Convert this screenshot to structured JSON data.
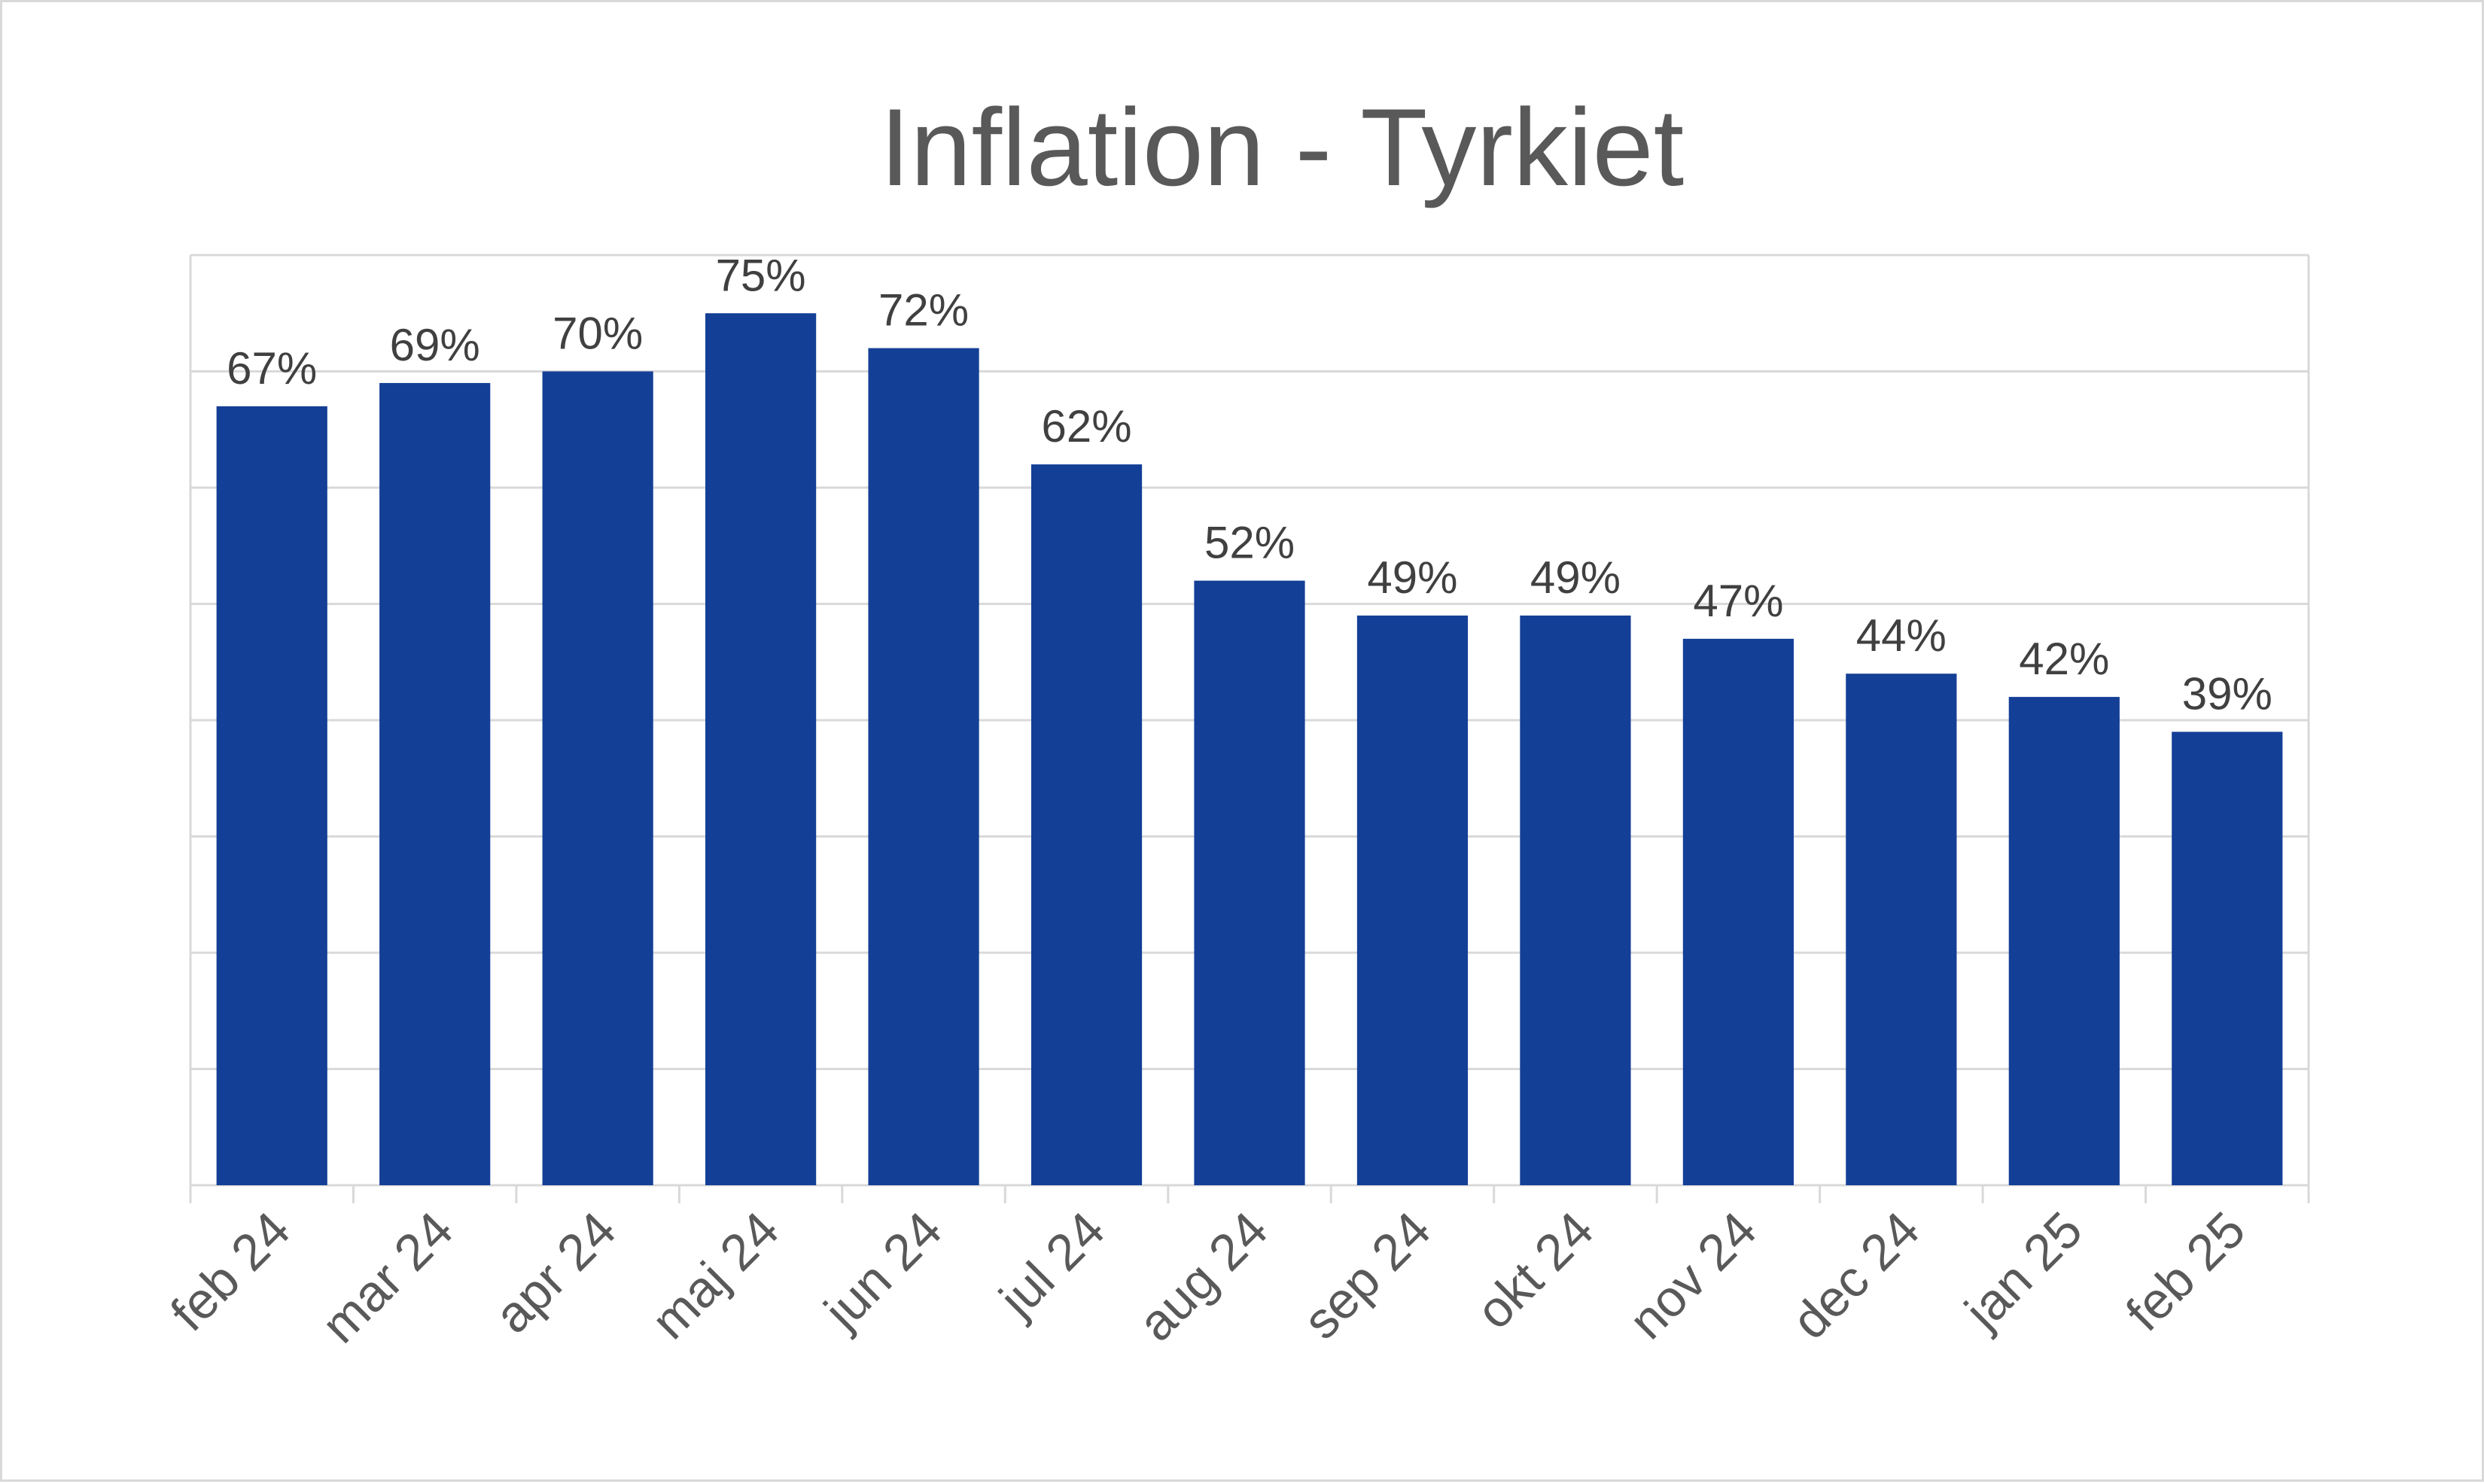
{
  "chart_data": {
    "type": "bar",
    "title": "Inflation - Tyrkiet",
    "xlabel": "",
    "ylabel": "",
    "categories": [
      "feb 24",
      "mar 24",
      "apr 24",
      "maj 24",
      "jun 24",
      "jul 24",
      "aug 24",
      "sep 24",
      "okt 24",
      "nov 24",
      "dec 24",
      "jan 25",
      "feb 25"
    ],
    "values": [
      67,
      69,
      70,
      75,
      72,
      62,
      52,
      49,
      49,
      47,
      44,
      42,
      39
    ],
    "data_labels": [
      "67%",
      "69%",
      "70%",
      "75%",
      "72%",
      "62%",
      "52%",
      "49%",
      "49%",
      "47%",
      "44%",
      "42%",
      "39%"
    ],
    "ylim": [
      0,
      80
    ],
    "y_gridline_step": 10,
    "y_tick_labels_shown": false,
    "grid": true,
    "legend": "none",
    "x_tick_label_rotation_deg": -45,
    "colors": {
      "bar": "#143f96",
      "gridline": "#d9d9d9",
      "title": "#595959",
      "tick_label": "#595959",
      "data_label": "#404040"
    }
  }
}
